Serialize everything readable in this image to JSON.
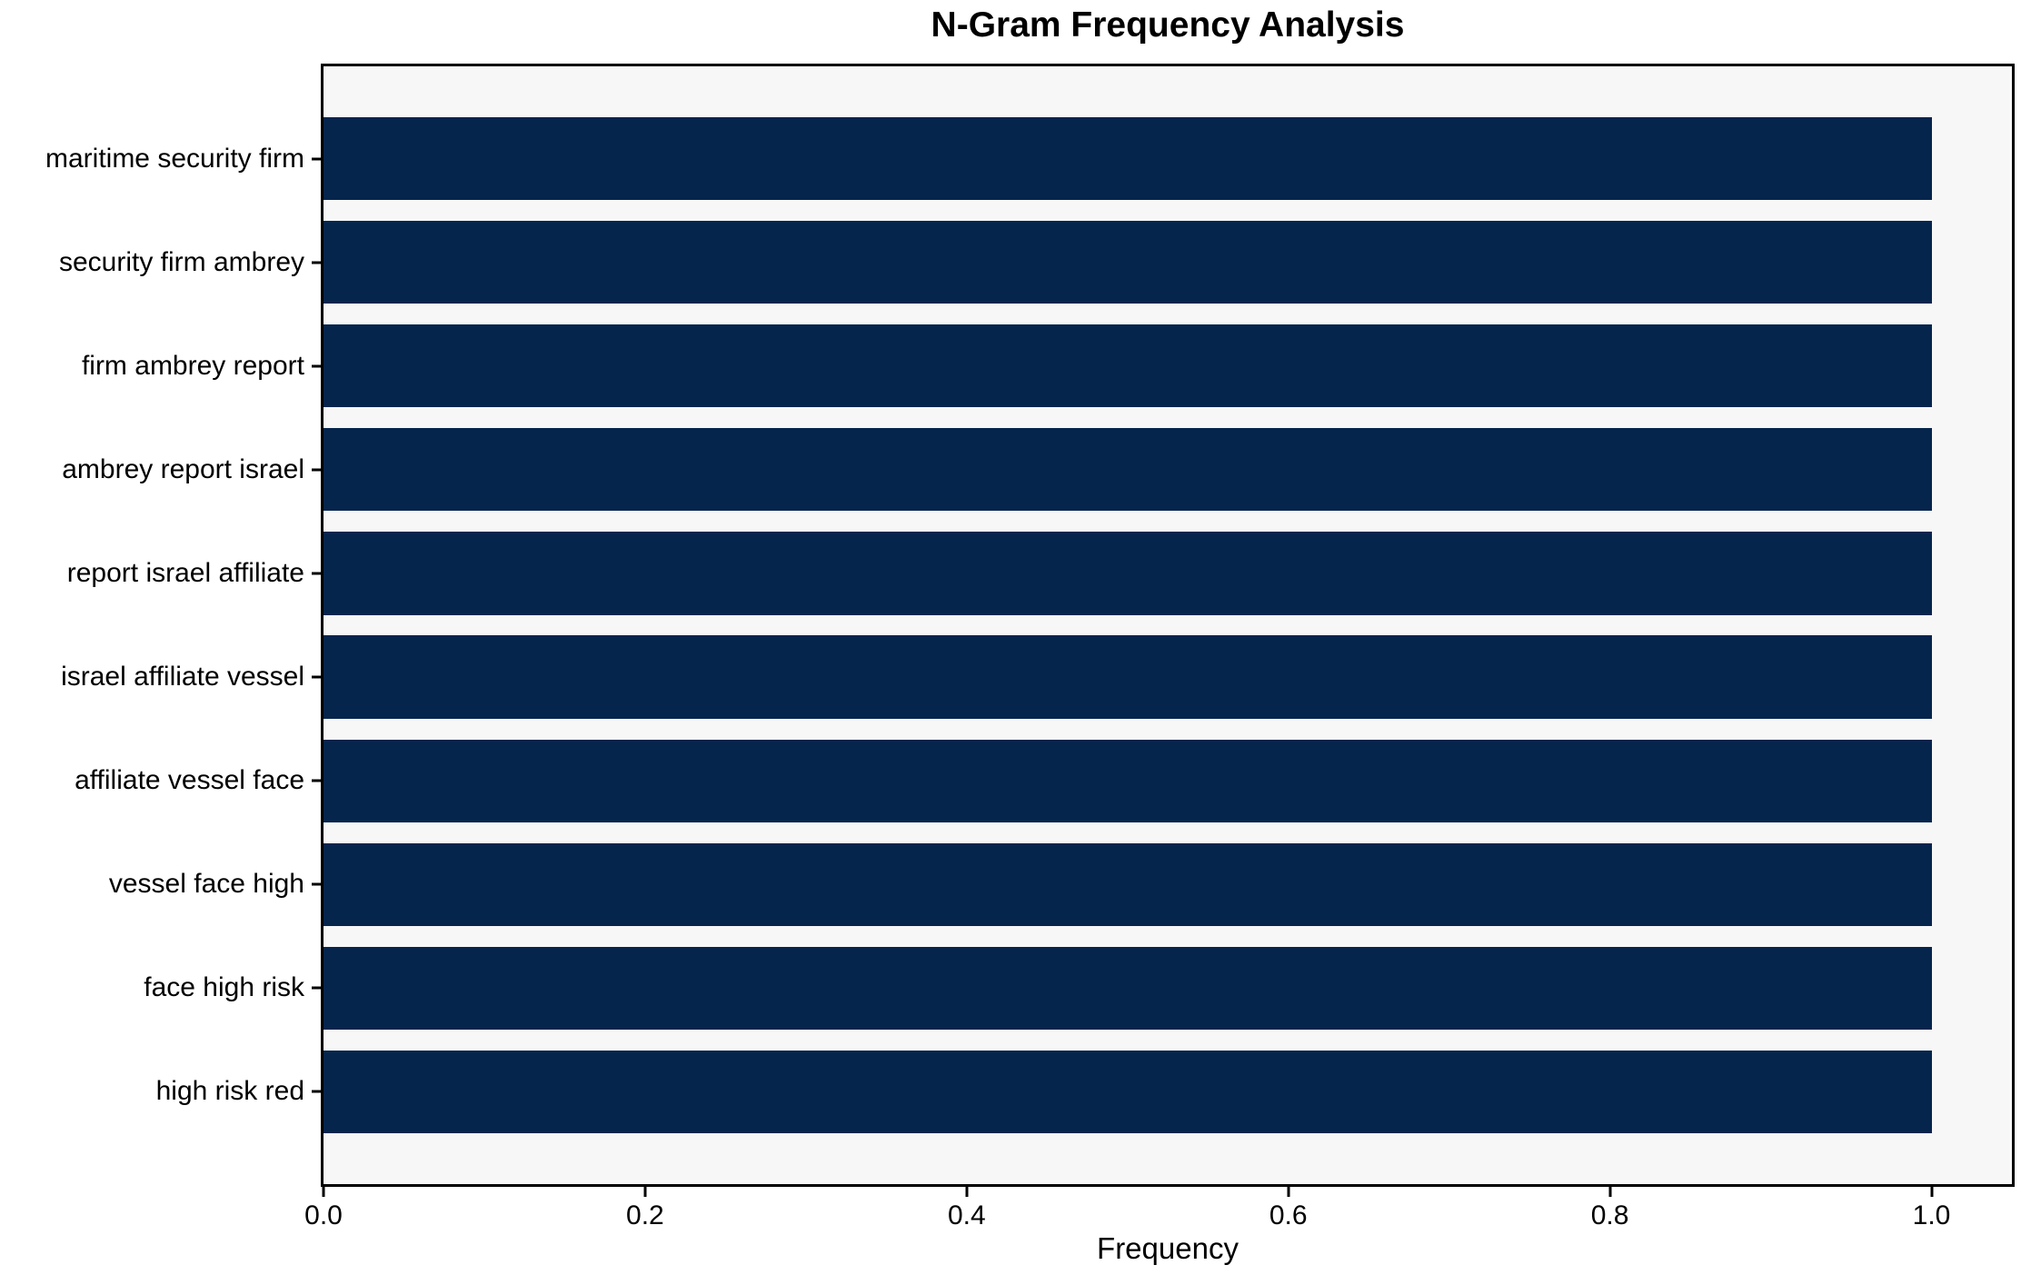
{
  "chart_data": {
    "type": "bar",
    "orientation": "horizontal",
    "title": "N-Gram Frequency Analysis",
    "xlabel": "Frequency",
    "ylabel": "",
    "categories": [
      "maritime security firm",
      "security firm ambrey",
      "firm ambrey report",
      "ambrey report israel",
      "report israel affiliate",
      "israel affiliate vessel",
      "affiliate vessel face",
      "vessel face high",
      "face high risk",
      "high risk red"
    ],
    "values": [
      1.0,
      1.0,
      1.0,
      1.0,
      1.0,
      1.0,
      1.0,
      1.0,
      1.0,
      1.0
    ],
    "xlim": [
      0,
      1.05
    ],
    "xticks": [
      0.0,
      0.2,
      0.4,
      0.6,
      0.8,
      1.0
    ],
    "xtick_labels": [
      "0.0",
      "0.2",
      "0.4",
      "0.6",
      "0.8",
      "1.0"
    ],
    "grid": false,
    "legend": null,
    "colors": {
      "bar": "#05254d",
      "plot_background": "#f7f7f7",
      "figure_background": "#ffffff",
      "spine": "#000000",
      "text": "#000000"
    }
  }
}
